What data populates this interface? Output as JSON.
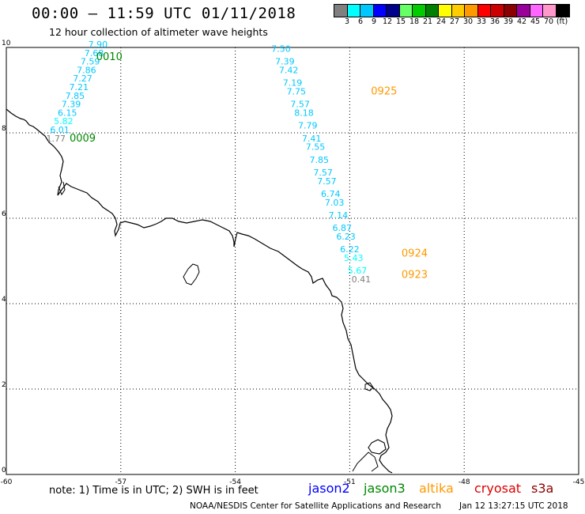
{
  "header": {
    "title": "00:00 – 11:59 UTC 01/11/2018",
    "subtitle": "12 hour collection of altimeter wave heights"
  },
  "colorbar": {
    "colors": [
      "#808080",
      "#00ffff",
      "#00c8ff",
      "#0000ff",
      "#00008b",
      "#66ff66",
      "#00cc00",
      "#008000",
      "#ffff00",
      "#ffcc00",
      "#ff9900",
      "#ff0000",
      "#cc0000",
      "#8b0000",
      "#990099",
      "#ff66ff",
      "#ff99cc",
      "#000000"
    ],
    "labels": [
      "3",
      "6",
      "9",
      "12",
      "15",
      "18",
      "21",
      "24",
      "27",
      "30",
      "33",
      "36",
      "39",
      "42",
      "45",
      "70",
      "(ft)"
    ]
  },
  "map": {
    "lon_range": [
      -60,
      -45
    ],
    "lat_range": [
      0,
      10
    ],
    "x_ticks": [
      "-60",
      "-57",
      "-54",
      "-51",
      "-48",
      "-45"
    ],
    "y_ticks": [
      "0",
      "2",
      "4",
      "6",
      "8",
      "10"
    ],
    "tracks": [
      {
        "satellite": "jason3",
        "time_labels": [
          {
            "text": "0010",
            "lon": -57.3,
            "lat": 9.7
          },
          {
            "text": "0009",
            "lon": -58.0,
            "lat": 7.8
          }
        ],
        "points": [
          {
            "lon": -57.6,
            "lat": 10.0,
            "value": "7.90"
          },
          {
            "lon": -57.7,
            "lat": 9.8,
            "value": "7.68"
          },
          {
            "lon": -57.8,
            "lat": 9.6,
            "value": "7.59"
          },
          {
            "lon": -57.9,
            "lat": 9.4,
            "value": "7.86"
          },
          {
            "lon": -58.0,
            "lat": 9.2,
            "value": "7.27"
          },
          {
            "lon": -58.1,
            "lat": 9.0,
            "value": "7.21"
          },
          {
            "lon": -58.2,
            "lat": 8.8,
            "value": "7.85"
          },
          {
            "lon": -58.3,
            "lat": 8.6,
            "value": "7.39"
          },
          {
            "lon": -58.4,
            "lat": 8.4,
            "value": "6.15"
          },
          {
            "lon": -58.5,
            "lat": 8.2,
            "value": "5.82"
          },
          {
            "lon": -58.6,
            "lat": 8.0,
            "value": "6.01"
          },
          {
            "lon": -58.7,
            "lat": 7.8,
            "value": "1.77"
          }
        ]
      },
      {
        "satellite": "altika",
        "time_labels": [
          {
            "text": "0925",
            "lon": -50.1,
            "lat": 8.9
          },
          {
            "text": "0924",
            "lon": -49.3,
            "lat": 5.1
          },
          {
            "text": "0923",
            "lon": -49.3,
            "lat": 4.6
          }
        ],
        "points": [
          {
            "lon": -52.8,
            "lat": 9.9,
            "value": "7.50"
          },
          {
            "lon": -52.7,
            "lat": 9.6,
            "value": "7.39"
          },
          {
            "lon": -52.6,
            "lat": 9.4,
            "value": "7.42"
          },
          {
            "lon": -52.5,
            "lat": 9.1,
            "value": "7.19"
          },
          {
            "lon": -52.4,
            "lat": 8.9,
            "value": "7.75"
          },
          {
            "lon": -52.3,
            "lat": 8.6,
            "value": "7.57"
          },
          {
            "lon": -52.2,
            "lat": 8.4,
            "value": "8.18"
          },
          {
            "lon": -52.1,
            "lat": 8.1,
            "value": "7.79"
          },
          {
            "lon": -52.0,
            "lat": 7.8,
            "value": "7.41"
          },
          {
            "lon": -51.9,
            "lat": 7.6,
            "value": "7.55"
          },
          {
            "lon": -51.8,
            "lat": 7.3,
            "value": "7.85"
          },
          {
            "lon": -51.7,
            "lat": 7.0,
            "value": "7.57"
          },
          {
            "lon": -51.6,
            "lat": 6.8,
            "value": "7.57"
          },
          {
            "lon": -51.5,
            "lat": 6.5,
            "value": "6.74"
          },
          {
            "lon": -51.4,
            "lat": 6.3,
            "value": "7.03"
          },
          {
            "lon": -51.3,
            "lat": 6.0,
            "value": "7.14"
          },
          {
            "lon": -51.2,
            "lat": 5.7,
            "value": "6.87"
          },
          {
            "lon": -51.1,
            "lat": 5.5,
            "value": "6.23"
          },
          {
            "lon": -51.0,
            "lat": 5.2,
            "value": "6.22"
          },
          {
            "lon": -50.9,
            "lat": 5.0,
            "value": "5.43"
          },
          {
            "lon": -50.8,
            "lat": 4.7,
            "value": "5.67"
          },
          {
            "lon": -50.7,
            "lat": 4.5,
            "value": "0.41"
          }
        ]
      }
    ]
  },
  "footer": {
    "note": "note:  1) Time is in UTC;  2) SWH is in feet",
    "legend": [
      {
        "name": "jason2",
        "color": "#0000ff"
      },
      {
        "name": "jason3",
        "color": "#008800"
      },
      {
        "name": "altika",
        "color": "#ff9900"
      },
      {
        "name": "cryosat",
        "color": "#dd0000"
      },
      {
        "name": "s3a",
        "color": "#8b0000"
      }
    ],
    "credit": "NOAA/NESDIS Center for Satellite Applications and Research",
    "timestamp": "Jan 12 13:27:15 UTC 2018"
  }
}
